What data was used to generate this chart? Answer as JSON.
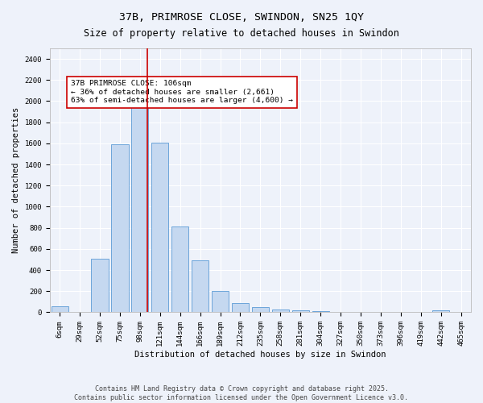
{
  "title": "37B, PRIMROSE CLOSE, SWINDON, SN25 1QY",
  "subtitle": "Size of property relative to detached houses in Swindon",
  "xlabel": "Distribution of detached houses by size in Swindon",
  "ylabel": "Number of detached properties",
  "bar_color": "#c5d8f0",
  "bar_edge_color": "#5b9bd5",
  "background_color": "#eef2fa",
  "grid_color": "#ffffff",
  "categories": [
    "6sqm",
    "29sqm",
    "52sqm",
    "75sqm",
    "98sqm",
    "121sqm",
    "144sqm",
    "166sqm",
    "189sqm",
    "212sqm",
    "235sqm",
    "258sqm",
    "281sqm",
    "304sqm",
    "327sqm",
    "350sqm",
    "373sqm",
    "396sqm",
    "419sqm",
    "442sqm",
    "465sqm"
  ],
  "values": [
    60,
    0,
    510,
    1590,
    1960,
    1610,
    810,
    490,
    200,
    90,
    50,
    30,
    20,
    10,
    5,
    3,
    0,
    0,
    0,
    20,
    0
  ],
  "ylim": [
    0,
    2500
  ],
  "yticks": [
    0,
    200,
    400,
    600,
    800,
    1000,
    1200,
    1400,
    1600,
    1800,
    2000,
    2200,
    2400
  ],
  "vline_x": 4.35,
  "vline_color": "#cc0000",
  "annotation_text": "37B PRIMROSE CLOSE: 106sqm\n← 36% of detached houses are smaller (2,661)\n63% of semi-detached houses are larger (4,600) →",
  "annotation_box_color": "#ffffff",
  "annotation_box_edge": "#cc0000",
  "footer": "Contains HM Land Registry data © Crown copyright and database right 2025.\nContains public sector information licensed under the Open Government Licence v3.0.",
  "title_fontsize": 9.5,
  "subtitle_fontsize": 8.5,
  "axis_label_fontsize": 7.5,
  "tick_fontsize": 6.5,
  "annotation_fontsize": 6.8,
  "footer_fontsize": 6.0
}
